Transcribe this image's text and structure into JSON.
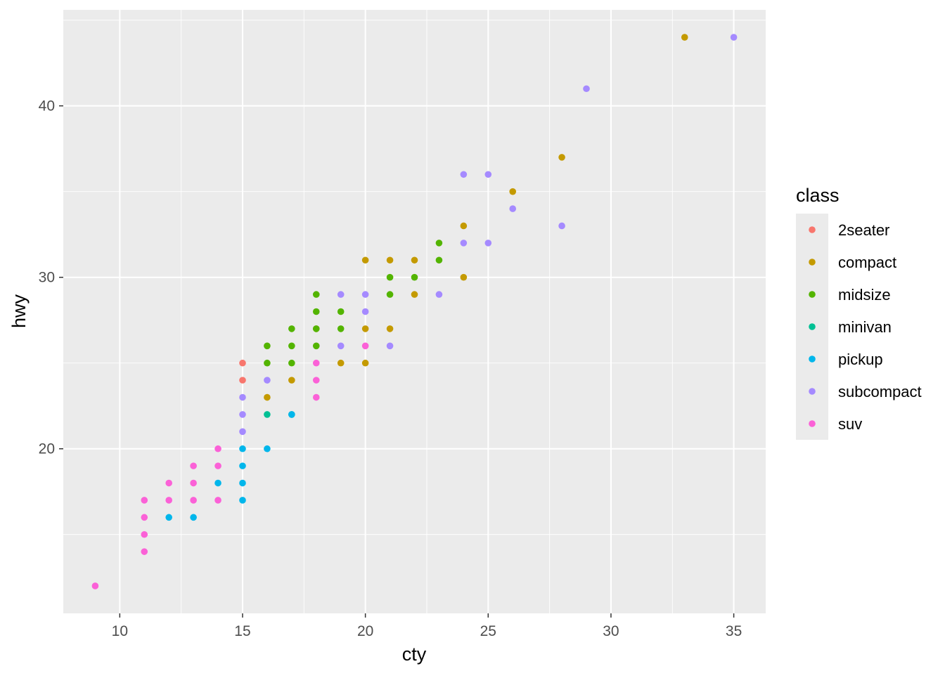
{
  "chart_data": {
    "type": "scatter",
    "title": "",
    "xlabel": "cty",
    "ylabel": "hwy",
    "xlim": [
      7.7,
      36.3
    ],
    "ylim": [
      10.4,
      45.6
    ],
    "x_ticks": [
      10,
      15,
      20,
      25,
      30,
      35
    ],
    "y_ticks": [
      20,
      30,
      40
    ],
    "grid": true,
    "legend": {
      "title": "class",
      "position": "right"
    },
    "series": [
      {
        "name": "2seater",
        "color": "#F8766D",
        "points": [
          [
            15,
            25
          ],
          [
            15,
            24
          ]
        ]
      },
      {
        "name": "compact",
        "color": "#C49A00",
        "points": [
          [
            33,
            44
          ],
          [
            28,
            37
          ],
          [
            26,
            35
          ],
          [
            24,
            33
          ],
          [
            24,
            30
          ],
          [
            22,
            31
          ],
          [
            22,
            29
          ],
          [
            21,
            31
          ],
          [
            21,
            27
          ],
          [
            20,
            31
          ],
          [
            20,
            27
          ],
          [
            20,
            25
          ],
          [
            19,
            25
          ],
          [
            18,
            27
          ],
          [
            17,
            24
          ],
          [
            16,
            23
          ]
        ]
      },
      {
        "name": "midsize",
        "color": "#53B400",
        "points": [
          [
            23,
            32
          ],
          [
            23,
            31
          ],
          [
            22,
            30
          ],
          [
            21,
            30
          ],
          [
            21,
            29
          ],
          [
            19,
            28
          ],
          [
            19,
            27
          ],
          [
            18,
            29
          ],
          [
            18,
            28
          ],
          [
            18,
            27
          ],
          [
            18,
            26
          ],
          [
            17,
            27
          ],
          [
            17,
            26
          ],
          [
            17,
            25
          ],
          [
            16,
            26
          ],
          [
            16,
            25
          ]
        ]
      },
      {
        "name": "minivan",
        "color": "#00C094",
        "points": [
          [
            16,
            22
          ],
          [
            17,
            22
          ]
        ]
      },
      {
        "name": "pickup",
        "color": "#00B6EB",
        "points": [
          [
            17,
            22
          ],
          [
            16,
            20
          ],
          [
            15,
            20
          ],
          [
            15,
            19
          ],
          [
            15,
            18
          ],
          [
            15,
            17
          ],
          [
            14,
            18
          ],
          [
            13,
            16
          ],
          [
            12,
            16
          ]
        ]
      },
      {
        "name": "subcompact",
        "color": "#A58AFF",
        "points": [
          [
            35,
            44
          ],
          [
            29,
            41
          ],
          [
            28,
            33
          ],
          [
            26,
            34
          ],
          [
            25,
            36
          ],
          [
            25,
            32
          ],
          [
            24,
            36
          ],
          [
            24,
            32
          ],
          [
            23,
            29
          ],
          [
            21,
            26
          ],
          [
            20,
            29
          ],
          [
            20,
            28
          ],
          [
            19,
            29
          ],
          [
            19,
            26
          ],
          [
            16,
            24
          ],
          [
            15,
            23
          ],
          [
            15,
            22
          ],
          [
            15,
            21
          ]
        ]
      },
      {
        "name": "suv",
        "color": "#FB61D7",
        "points": [
          [
            20,
            26
          ],
          [
            18,
            25
          ],
          [
            18,
            24
          ],
          [
            18,
            23
          ],
          [
            14,
            20
          ],
          [
            14,
            19
          ],
          [
            14,
            17
          ],
          [
            13,
            19
          ],
          [
            13,
            18
          ],
          [
            13,
            17
          ],
          [
            12,
            18
          ],
          [
            12,
            17
          ],
          [
            11,
            17
          ],
          [
            11,
            16
          ],
          [
            11,
            15
          ],
          [
            11,
            14
          ],
          [
            9,
            12
          ]
        ]
      }
    ]
  },
  "colors": {
    "panel_background": "#EBEBEB",
    "grid_major": "#FFFFFF",
    "axis_text": "#4D4D4D",
    "title_text": "#000000"
  }
}
